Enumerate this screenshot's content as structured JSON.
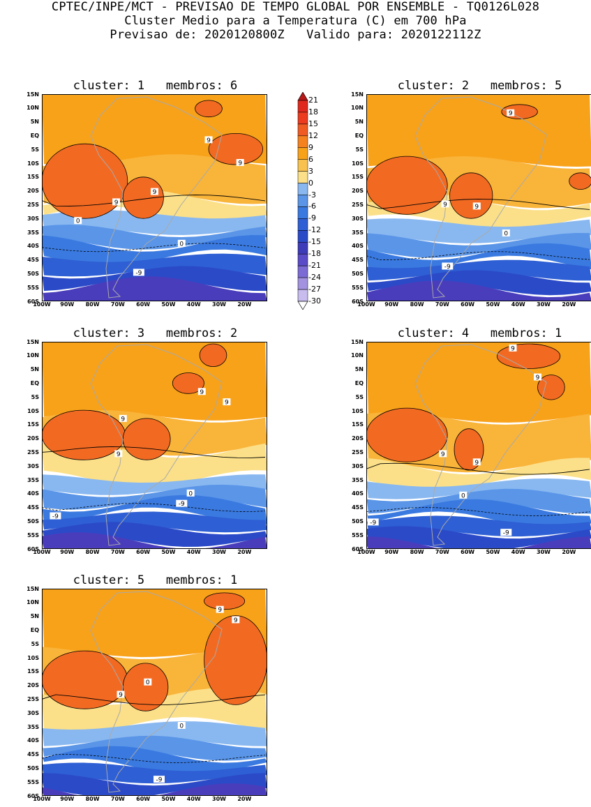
{
  "header": {
    "line1": "CPTEC/INPE/MCT - PREVISAO DE TEMPO GLOBAL POR ENSEMBLE - TQ0126L028",
    "line2": "Cluster Medio para a Temperatura (C) em 700 hPa",
    "line3": "Previsao de: 2020120800Z   Valido para: 2020122112Z"
  },
  "axes": {
    "lat_ticks": [
      "15N",
      "10N",
      "5N",
      "EQ",
      "5S",
      "10S",
      "15S",
      "20S",
      "25S",
      "30S",
      "35S",
      "40S",
      "45S",
      "50S",
      "55S",
      "60S"
    ],
    "lon_ticks": [
      "100W",
      "90W",
      "80W",
      "70W",
      "60W",
      "50W",
      "40W",
      "30W",
      "20W"
    ]
  },
  "colorbar": {
    "levels": [
      "21",
      "18",
      "15",
      "12",
      "9",
      "6",
      "3",
      "0",
      "-3",
      "-6",
      "-9",
      "-12",
      "-15",
      "-18",
      "-21",
      "-24",
      "-27",
      "-30"
    ],
    "colors": [
      "#e0291c",
      "#ec3b1f",
      "#ef5b22",
      "#f5821f",
      "#f8a21a",
      "#f9c250",
      "#fbe089",
      "#89b8f0",
      "#5a95e8",
      "#3a7ae0",
      "#2e5fd4",
      "#2b4ac8",
      "#3d3bb8",
      "#5a4bc8",
      "#7c6bd4",
      "#a392e0",
      "#c8bcef"
    ]
  },
  "panels": [
    {
      "title": "cluster: 1   membros: 6",
      "contour_labels": [
        "9",
        "9",
        "9",
        "9",
        "0",
        "0",
        "-9"
      ]
    },
    {
      "title": "cluster: 2   membros: 5",
      "contour_labels": [
        "9",
        "9",
        "9",
        "0",
        "-9"
      ]
    },
    {
      "title": "cluster: 3   membros: 2",
      "contour_labels": [
        "9",
        "9",
        "9",
        "9",
        "0",
        "-9",
        "-9"
      ]
    },
    {
      "title": "cluster: 4   membros: 1",
      "contour_labels": [
        "9",
        "9",
        "9",
        "9",
        "0",
        "-9",
        "-9"
      ]
    },
    {
      "title": "cluster: 5   membros: 1",
      "contour_labels": [
        "9",
        "9",
        "9",
        "0",
        "0",
        "-9"
      ]
    }
  ]
}
